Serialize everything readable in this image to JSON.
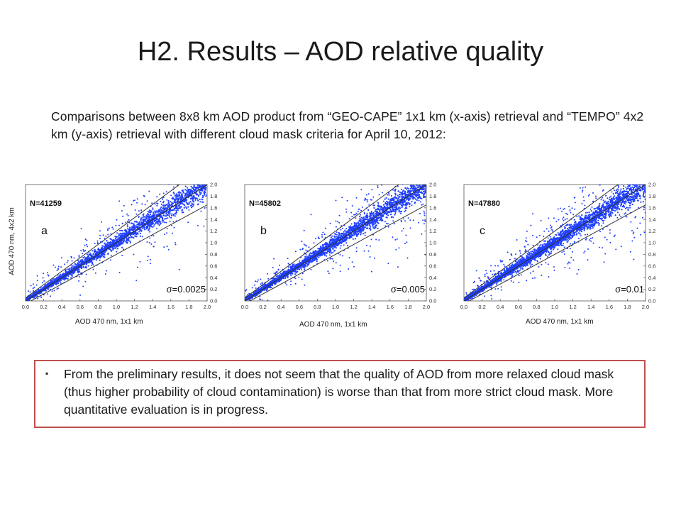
{
  "slide": {
    "title": "H2. Results – AOD relative quality",
    "intro": "Comparisons between 8x8 km AOD product from “GEO-CAPE” 1x1 km (x-axis) retrieval and “TEMPO” 4x2 km (y-axis) retrieval with different cloud mask criteria for April 10, 2012:",
    "y_axis_label": "AOD 470 nm, 4x2 km",
    "note_bullet": "▪",
    "note": "From the preliminary results, it does not seem that the quality of AOD from more relaxed cloud mask (thus higher probability of cloud contamination) is worse than that from more strict cloud mask. More quantitative evaluation is in progress.",
    "colors": {
      "points": "#1f3fff",
      "lines": "#333333",
      "border": "#c0504d"
    }
  },
  "chart_data": [
    {
      "type": "scatter",
      "panel": "a",
      "count_label": "N=41259",
      "sigma_label": "σ=0.0025",
      "xlabel": "AOD 470 nm, 1x1 km",
      "ylabel": "AOD 470 nm, 4x2 km",
      "xlim": [
        0.0,
        2.0
      ],
      "ylim": [
        0.0,
        2.0
      ],
      "x_ticks": [
        "0.0",
        "0.2",
        "0.4",
        "0.6",
        "0.8",
        "1.0",
        "1.2",
        "1.4",
        "1.6",
        "1.8",
        "2.0"
      ],
      "y_ticks": [
        "0.0",
        "0.2",
        "0.4",
        "0.6",
        "0.8",
        "1.0",
        "1.2",
        "1.4",
        "1.6",
        "1.8",
        "2.0"
      ],
      "reference_lines": [
        {
          "slope": 1.0,
          "intercept": 0.0
        },
        {
          "slope": 1.15,
          "intercept": 0.05
        },
        {
          "slope": 0.85,
          "intercept": -0.05
        }
      ]
    },
    {
      "type": "scatter",
      "panel": "b",
      "count_label": "N=45802",
      "sigma_label": "σ=0.005",
      "xlabel": "AOD 470 nm, 1x1 km",
      "ylabel": "",
      "xlim": [
        0.0,
        2.0
      ],
      "ylim": [
        0.0,
        2.0
      ],
      "x_ticks": [
        "0.0",
        "0.2",
        "0.4",
        "0.6",
        "0.8",
        "1.0",
        "1.2",
        "1.4",
        "1.6",
        "1.8",
        "2.0"
      ],
      "y_ticks": [
        "0.0",
        "0.2",
        "0.4",
        "0.6",
        "0.8",
        "1.0",
        "1.2",
        "1.4",
        "1.6",
        "1.8",
        "2.0"
      ],
      "reference_lines": [
        {
          "slope": 1.0,
          "intercept": 0.0
        },
        {
          "slope": 1.15,
          "intercept": 0.05
        },
        {
          "slope": 0.85,
          "intercept": -0.05
        }
      ]
    },
    {
      "type": "scatter",
      "panel": "c",
      "count_label": "N=47880",
      "sigma_label": "σ=0.01",
      "xlabel": "AOD 470 nm, 1x1 km",
      "ylabel": "",
      "xlim": [
        0.0,
        2.0
      ],
      "ylim": [
        0.0,
        2.0
      ],
      "x_ticks": [
        "0.0",
        "0.2",
        "0.4",
        "0.6",
        "0.8",
        "1.0",
        "1.2",
        "1.4",
        "1.6",
        "1.8",
        "2.0"
      ],
      "y_ticks": [
        "0.0",
        "0.2",
        "0.4",
        "0.6",
        "0.8",
        "1.0",
        "1.2",
        "1.4",
        "1.6",
        "1.8",
        "2.0"
      ],
      "reference_lines": [
        {
          "slope": 1.0,
          "intercept": 0.0
        },
        {
          "slope": 1.15,
          "intercept": 0.05
        },
        {
          "slope": 0.85,
          "intercept": -0.05
        }
      ]
    }
  ]
}
